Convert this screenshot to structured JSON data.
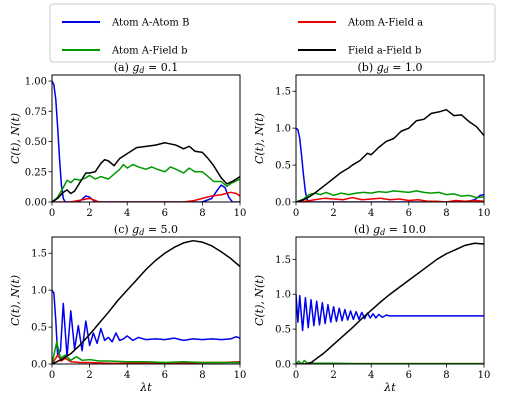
{
  "legend": {
    "entries": [
      {
        "label": "Atom A-Atom B",
        "color": "#0000ee"
      },
      {
        "label": "Atom A-Field a",
        "color": "#ee0000"
      },
      {
        "label": "Atom A-Field b",
        "color": "#009900"
      },
      {
        "label": "Field a-Field b",
        "color": "#000000"
      }
    ]
  },
  "chart_data": [
    {
      "type": "line",
      "title": "(a) g_d = 0.1",
      "title_prefix": "(a)",
      "title_var": "g",
      "title_sub": "d",
      "title_value": "= 0.1",
      "xlabel": "",
      "ylabel": "C(t), N(t)",
      "xlim": [
        0,
        10
      ],
      "ylim": [
        0,
        1.05
      ],
      "xticks": [
        0,
        2,
        4,
        6,
        8,
        10
      ],
      "yticks": [
        0,
        0.25,
        0.5,
        0.75,
        1.0
      ],
      "ytick_labels": [
        "0.00",
        "0.25",
        "0.50",
        "0.75",
        "1.00"
      ],
      "series": [
        {
          "name": "Atom A-Atom B",
          "color": "#0000ee",
          "x": [
            0,
            0.1,
            0.2,
            0.3,
            0.4,
            0.5,
            0.6,
            0.7,
            0.8,
            1.0,
            1.2,
            1.5,
            1.8,
            2.0,
            2.3,
            3.0,
            4.0,
            5.0,
            6.0,
            7.0,
            8.0,
            8.5,
            8.8,
            9.0,
            9.2,
            9.4,
            9.6,
            10.0
          ],
          "y": [
            1.0,
            0.97,
            0.85,
            0.62,
            0.36,
            0.14,
            0.03,
            0.0,
            0.0,
            0.0,
            0.0,
            0.01,
            0.05,
            0.04,
            0.0,
            0.0,
            0.0,
            0.0,
            0.0,
            0.0,
            0.0,
            0.03,
            0.1,
            0.14,
            0.12,
            0.04,
            0.0,
            0.0
          ]
        },
        {
          "name": "Atom A-Field a",
          "color": "#ee0000",
          "x": [
            0,
            0.5,
            1,
            2,
            2.5,
            3,
            4,
            5,
            6,
            7,
            7.5,
            8,
            8.5,
            9,
            9.5,
            9.8,
            10
          ],
          "y": [
            0,
            0.0,
            0.0,
            0.03,
            0.0,
            0.0,
            0.0,
            0.0,
            0.0,
            0.0,
            0.01,
            0.03,
            0.05,
            0.06,
            0.08,
            0.07,
            0.05
          ]
        },
        {
          "name": "Atom A-Field b",
          "color": "#009900",
          "x": [
            0,
            0.3,
            0.6,
            0.8,
            1.0,
            1.2,
            1.5,
            1.8,
            2.0,
            2.3,
            2.6,
            3.0,
            3.3,
            3.6,
            3.8,
            4.0,
            4.3,
            4.6,
            5.0,
            5.3,
            5.6,
            6.0,
            6.3,
            6.6,
            7.0,
            7.3,
            7.6,
            8.0,
            8.3,
            8.6,
            9.0,
            9.3,
            9.6,
            10.0
          ],
          "y": [
            0,
            0.04,
            0.12,
            0.18,
            0.16,
            0.19,
            0.18,
            0.2,
            0.22,
            0.19,
            0.21,
            0.19,
            0.23,
            0.27,
            0.31,
            0.28,
            0.31,
            0.29,
            0.27,
            0.29,
            0.27,
            0.25,
            0.29,
            0.27,
            0.24,
            0.28,
            0.25,
            0.25,
            0.21,
            0.17,
            0.17,
            0.13,
            0.16,
            0.19
          ]
        },
        {
          "name": "Field a-Field b",
          "color": "#000000",
          "x": [
            0,
            0.3,
            0.6,
            0.8,
            1.0,
            1.2,
            1.4,
            1.6,
            1.8,
            2.0,
            2.3,
            2.6,
            2.8,
            3.0,
            3.3,
            3.6,
            4.0,
            4.5,
            5.0,
            5.5,
            6.0,
            6.3,
            6.6,
            7.0,
            7.3,
            7.6,
            8.0,
            8.3,
            8.6,
            9.0,
            9.3,
            9.6,
            10.0
          ],
          "y": [
            0,
            0.03,
            0.08,
            0.1,
            0.07,
            0.09,
            0.14,
            0.19,
            0.24,
            0.24,
            0.25,
            0.32,
            0.35,
            0.34,
            0.3,
            0.36,
            0.4,
            0.45,
            0.46,
            0.47,
            0.49,
            0.48,
            0.47,
            0.44,
            0.46,
            0.42,
            0.41,
            0.36,
            0.3,
            0.2,
            0.15,
            0.17,
            0.21
          ]
        }
      ]
    },
    {
      "type": "line",
      "title": "(b) g_d = 1.0",
      "title_prefix": "(b)",
      "title_var": "g",
      "title_sub": "d",
      "title_value": "= 1.0",
      "xlabel": "",
      "ylabel": "C(t), N(t)",
      "xlim": [
        0,
        10
      ],
      "ylim": [
        0,
        1.72
      ],
      "xticks": [
        0,
        2,
        4,
        6,
        8,
        10
      ],
      "yticks": [
        0,
        0.5,
        1.0,
        1.5
      ],
      "ytick_labels": [
        "0.0",
        "0.5",
        "1.0",
        "1.5"
      ],
      "series": [
        {
          "name": "Atom A-Atom B",
          "color": "#0000ee",
          "x": [
            0,
            0.1,
            0.2,
            0.3,
            0.4,
            0.5,
            0.6,
            0.7,
            0.8,
            1.0,
            1.5,
            2.0,
            3.0,
            4.0,
            5.0,
            6.0,
            7.0,
            8.0,
            9.0,
            9.5,
            9.8,
            10.0
          ],
          "y": [
            1.0,
            0.98,
            0.86,
            0.62,
            0.36,
            0.14,
            0.03,
            0.0,
            0.0,
            0.0,
            0.0,
            0.0,
            0.0,
            0.0,
            0.0,
            0.0,
            0.0,
            0.0,
            0.0,
            0.03,
            0.09,
            0.1
          ]
        },
        {
          "name": "Atom A-Field a",
          "color": "#ee0000",
          "x": [
            0,
            0.5,
            1.0,
            1.5,
            2.0,
            2.5,
            3.0,
            3.5,
            4.0,
            4.5,
            5.0,
            5.5,
            6.0,
            6.5,
            7.0,
            7.5,
            8.0,
            8.5,
            9.0,
            9.5,
            10.0
          ],
          "y": [
            0,
            0.01,
            0.03,
            0.05,
            0.04,
            0.03,
            0.06,
            0.03,
            0.04,
            0.05,
            0.03,
            0.04,
            0.02,
            0.03,
            0.01,
            0.01,
            0.0,
            0.02,
            0.01,
            0.02,
            0.01
          ]
        },
        {
          "name": "Atom A-Field b",
          "color": "#009900",
          "x": [
            0,
            0.4,
            0.7,
            1.0,
            1.3,
            1.6,
            2.0,
            2.4,
            2.8,
            3.2,
            3.6,
            4.0,
            4.4,
            4.8,
            5.2,
            5.6,
            6.0,
            6.4,
            6.8,
            7.2,
            7.6,
            8.0,
            8.4,
            8.8,
            9.2,
            9.6,
            10.0
          ],
          "y": [
            0,
            0.04,
            0.1,
            0.12,
            0.1,
            0.13,
            0.09,
            0.12,
            0.1,
            0.12,
            0.13,
            0.12,
            0.14,
            0.13,
            0.15,
            0.14,
            0.13,
            0.15,
            0.13,
            0.12,
            0.13,
            0.1,
            0.11,
            0.08,
            0.09,
            0.06,
            0.07
          ]
        },
        {
          "name": "Field a-Field b",
          "color": "#000000",
          "x": [
            0,
            0.4,
            0.7,
            1.0,
            1.3,
            1.6,
            2.0,
            2.4,
            2.8,
            3.0,
            3.4,
            3.8,
            4.0,
            4.4,
            4.8,
            5.2,
            5.6,
            6.0,
            6.4,
            6.8,
            7.2,
            7.6,
            8.0,
            8.4,
            8.8,
            9.2,
            9.6,
            10.0
          ],
          "y": [
            0,
            0.03,
            0.07,
            0.12,
            0.18,
            0.24,
            0.32,
            0.4,
            0.46,
            0.5,
            0.56,
            0.66,
            0.64,
            0.74,
            0.82,
            0.86,
            0.96,
            1.0,
            1.1,
            1.12,
            1.2,
            1.22,
            1.25,
            1.17,
            1.18,
            1.09,
            1.02,
            0.9
          ]
        }
      ]
    },
    {
      "type": "line",
      "title": "(c) g_d = 5.0",
      "title_prefix": "(c)",
      "title_var": "g",
      "title_sub": "d",
      "title_value": "= 5.0",
      "xlabel": "λt",
      "ylabel": "C(t), N(t)",
      "xlim": [
        0,
        10
      ],
      "ylim": [
        0,
        1.72
      ],
      "xticks": [
        0,
        2,
        4,
        6,
        8,
        10
      ],
      "yticks": [
        0,
        0.5,
        1.0,
        1.5
      ],
      "ytick_labels": [
        "0.0",
        "0.5",
        "1.0",
        "1.5"
      ],
      "series": [
        {
          "name": "Atom A-Atom B",
          "color": "#0000ee",
          "x": [
            0,
            0.1,
            0.2,
            0.3,
            0.45,
            0.6,
            0.8,
            1.0,
            1.2,
            1.4,
            1.6,
            1.8,
            2.0,
            2.2,
            2.4,
            2.6,
            2.8,
            3.0,
            3.2,
            3.4,
            3.6,
            3.8,
            4.0,
            4.3,
            4.6,
            5.0,
            5.5,
            6.0,
            6.5,
            7.0,
            7.5,
            8.0,
            8.5,
            9.0,
            9.5,
            9.8,
            10.0
          ],
          "y": [
            1.0,
            0.96,
            0.6,
            0.12,
            0.18,
            0.82,
            0.1,
            0.72,
            0.2,
            0.52,
            0.18,
            0.58,
            0.25,
            0.42,
            0.28,
            0.48,
            0.32,
            0.36,
            0.3,
            0.42,
            0.32,
            0.34,
            0.38,
            0.32,
            0.36,
            0.33,
            0.34,
            0.33,
            0.35,
            0.32,
            0.34,
            0.33,
            0.34,
            0.33,
            0.34,
            0.37,
            0.35
          ]
        },
        {
          "name": "Atom A-Field a",
          "color": "#ee0000",
          "x": [
            0,
            0.3,
            0.5,
            0.7,
            1.0,
            1.5,
            2.0,
            3.0,
            4.0,
            5.0,
            6.0,
            7.0,
            8.0,
            9.0,
            10.0
          ],
          "y": [
            0,
            0.12,
            0.04,
            0.08,
            0.03,
            0.02,
            0.02,
            0.01,
            0.01,
            0.01,
            0.01,
            0.01,
            0.02,
            0.02,
            0.03
          ]
        },
        {
          "name": "Atom A-Field b",
          "color": "#009900",
          "x": [
            0,
            0.25,
            0.45,
            0.7,
            1.0,
            1.3,
            1.6,
            2.0,
            2.5,
            3.0,
            4.0,
            5.0,
            6.0,
            7.0,
            8.0,
            9.0,
            10.0
          ],
          "y": [
            0,
            0.3,
            0.08,
            0.12,
            0.05,
            0.1,
            0.05,
            0.06,
            0.04,
            0.04,
            0.03,
            0.03,
            0.02,
            0.03,
            0.02,
            0.02,
            0.02
          ]
        },
        {
          "name": "Field a-Field b",
          "color": "#000000",
          "x": [
            0,
            0.5,
            1.0,
            1.5,
            2.0,
            2.5,
            3.0,
            3.5,
            4.0,
            4.5,
            5.0,
            5.5,
            6.0,
            6.5,
            7.0,
            7.5,
            8.0,
            8.5,
            9.0,
            9.5,
            10.0
          ],
          "y": [
            0,
            0.06,
            0.14,
            0.26,
            0.4,
            0.55,
            0.7,
            0.86,
            1.0,
            1.14,
            1.28,
            1.4,
            1.5,
            1.58,
            1.64,
            1.67,
            1.65,
            1.6,
            1.52,
            1.43,
            1.32
          ]
        }
      ]
    },
    {
      "type": "line",
      "title": "(d) g_d = 10.0",
      "title_prefix": "(d)",
      "title_var": "g",
      "title_sub": "d",
      "title_value": "= 10.0",
      "xlabel": "λt",
      "ylabel": "C(t), N(t)",
      "xlim": [
        0,
        10
      ],
      "ylim": [
        0,
        1.82
      ],
      "xticks": [
        0,
        2,
        4,
        6,
        8,
        10
      ],
      "yticks": [
        0,
        0.5,
        1.0,
        1.5
      ],
      "ytick_labels": [
        "0.0",
        "0.5",
        "1.0",
        "1.5"
      ],
      "series": [
        {
          "name": "Atom A-Atom B",
          "color": "#0000ee",
          "x": [
            0,
            0.1,
            0.2,
            0.35,
            0.5,
            0.65,
            0.8,
            0.95,
            1.1,
            1.25,
            1.4,
            1.55,
            1.7,
            1.85,
            2.0,
            2.15,
            2.3,
            2.45,
            2.6,
            2.75,
            2.9,
            3.05,
            3.2,
            3.35,
            3.5,
            3.65,
            3.8,
            3.95,
            4.1,
            4.25,
            4.4,
            4.6,
            4.8,
            5.0,
            6.0,
            7.0,
            8.0,
            9.0,
            10.0
          ],
          "y": [
            1.0,
            0.6,
            0.98,
            0.48,
            0.95,
            0.52,
            0.92,
            0.55,
            0.9,
            0.56,
            0.88,
            0.58,
            0.85,
            0.6,
            0.82,
            0.61,
            0.8,
            0.62,
            0.78,
            0.63,
            0.76,
            0.64,
            0.75,
            0.64,
            0.74,
            0.65,
            0.73,
            0.66,
            0.72,
            0.66,
            0.71,
            0.67,
            0.7,
            0.69,
            0.69,
            0.69,
            0.69,
            0.69,
            0.69
          ]
        },
        {
          "name": "Atom A-Field a",
          "color": "#ee0000",
          "x": [
            0,
            1,
            2,
            3,
            4,
            5,
            6,
            7,
            8,
            9,
            10
          ],
          "y": [
            0,
            0.005,
            0.005,
            0.005,
            0.005,
            0.005,
            0.005,
            0.005,
            0.005,
            0.005,
            0.005
          ]
        },
        {
          "name": "Atom A-Field b",
          "color": "#009900",
          "x": [
            0,
            0.15,
            0.3,
            0.45,
            0.6,
            0.8,
            1.0,
            1.5,
            2.0,
            3.0,
            4.0,
            5.0,
            6.0,
            7.0,
            8.0,
            9.0,
            10.0
          ],
          "y": [
            0,
            0.04,
            0.0,
            0.05,
            0.01,
            0.02,
            0.01,
            0.01,
            0.01,
            0.005,
            0.005,
            0.005,
            0.005,
            0.005,
            0.005,
            0.005,
            0.005
          ]
        },
        {
          "name": "Field a-Field b",
          "color": "#000000",
          "x": [
            0,
            0.5,
            0.8,
            1.0,
            1.5,
            2.0,
            2.5,
            3.0,
            3.5,
            4.0,
            4.5,
            5.0,
            5.5,
            6.0,
            6.5,
            7.0,
            7.5,
            8.0,
            8.5,
            9.0,
            9.5,
            10.0
          ],
          "y": [
            0,
            0.0,
            0.02,
            0.06,
            0.16,
            0.28,
            0.4,
            0.52,
            0.65,
            0.77,
            0.89,
            1.0,
            1.1,
            1.2,
            1.3,
            1.4,
            1.5,
            1.58,
            1.64,
            1.7,
            1.73,
            1.72
          ]
        }
      ]
    }
  ]
}
